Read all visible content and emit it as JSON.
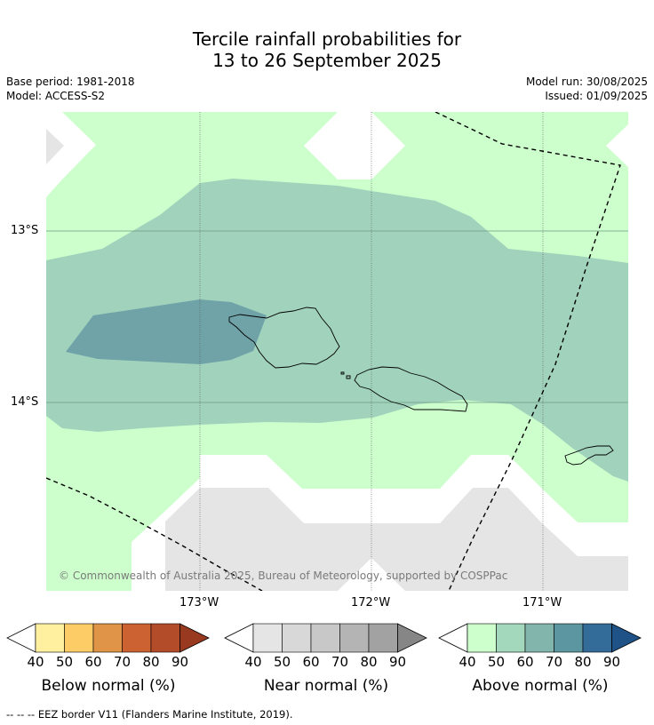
{
  "title": {
    "line1": "Tercile rainfall probabilities for",
    "line2": "13 to 26 September 2025"
  },
  "meta": {
    "base_period": "Base period: 1981-2018",
    "model": "Model: ACCESS-S2",
    "model_run": "Model run: 30/08/2025",
    "issued": "Issued: 01/09/2025"
  },
  "map": {
    "lat_labels": [
      "13°S",
      "14°S"
    ],
    "lon_labels": [
      "173°W",
      "172°W",
      "171°W"
    ],
    "copyright": "© Commonwealth of Australia 2025, Bureau of Meteorology, supported by COSPPac",
    "colors": {
      "above_40_50": "#ccffcc",
      "above_50_60": "#a0d2bc",
      "above_60_70": "#83b5ab",
      "above_70_80": "#6fa3a8",
      "near_40_50": "#e5e5e5",
      "white": "#ffffff"
    }
  },
  "colorbars": [
    {
      "title": "Below normal (%)",
      "ticks": [
        "40",
        "50",
        "60",
        "70",
        "80",
        "90"
      ],
      "colors": [
        "#fff0a0",
        "#fecc66",
        "#e09447",
        "#cc6231",
        "#b34c28",
        "#993a20"
      ]
    },
    {
      "title": "Near normal (%)",
      "ticks": [
        "40",
        "50",
        "60",
        "70",
        "80",
        "90"
      ],
      "colors": [
        "#e5e5e5",
        "#d8d8d8",
        "#c8c8c8",
        "#b4b4b4",
        "#a2a2a2",
        "#868686"
      ]
    },
    {
      "title": "Above normal (%)",
      "ticks": [
        "40",
        "50",
        "60",
        "70",
        "80",
        "90"
      ],
      "colors": [
        "#ccffcc",
        "#a3d8bc",
        "#82b5ab",
        "#5c96a0",
        "#336b99",
        "#1f5287"
      ]
    }
  ],
  "footnote": "--  --  -- EEZ border V11 (Flanders Marine Institute, 2019)."
}
